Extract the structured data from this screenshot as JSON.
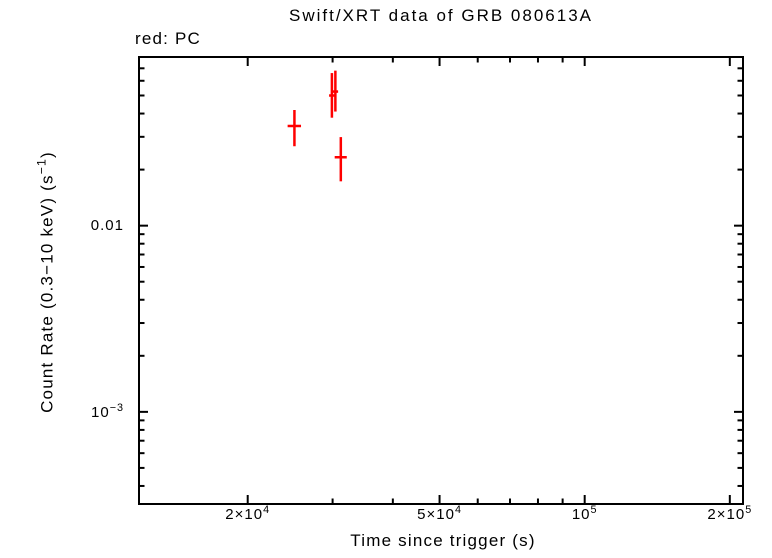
{
  "figure": {
    "title": "Swift/XRT data of GRB 080613A",
    "legend": "red: PC",
    "x_label": "Time since trigger (s)",
    "y_label": "Count Rate (0.3−10 keV) (s^{−1})",
    "colors": {
      "pc_mode": "#ff0000",
      "axis": "#000000",
      "background": "#ffffff"
    }
  },
  "chart_data": {
    "type": "scatter",
    "title": "Swift/XRT data of GRB 080613A",
    "xlabel": "Time since trigger (s)",
    "ylabel": "Count Rate (0.3−10 keV) (s⁻¹)",
    "x_scale": "log",
    "y_scale": "log",
    "xlim": [
      11900,
      213000
    ],
    "ylim": [
      0.00032,
      0.0805
    ],
    "grid": false,
    "legend": [
      {
        "label": "red: PC",
        "mode": "PC",
        "color": "#ff0000",
        "position": "top-left-outside"
      }
    ],
    "x_ticks": {
      "major": [
        {
          "value": 20000,
          "label": "2×10^{4}"
        },
        {
          "value": 50000,
          "label": "5×10^{4}"
        },
        {
          "value": 100000,
          "label": "10^{5}"
        },
        {
          "value": 200000,
          "label": "2×10^{5}"
        }
      ],
      "minor": [
        30000,
        40000,
        60000,
        70000,
        80000,
        90000
      ]
    },
    "y_ticks": {
      "major": [
        {
          "value": 0.01,
          "label": "0.01"
        },
        {
          "value": 0.001,
          "label": "10^{−3}"
        }
      ],
      "minor": [
        0.07,
        0.06,
        0.05,
        0.04,
        0.03,
        0.02,
        0.009,
        0.008,
        0.007,
        0.006,
        0.005,
        0.004,
        0.003,
        0.002,
        0.0009,
        0.0008,
        0.0007,
        0.0006,
        0.0005,
        0.0004
      ]
    },
    "series": [
      {
        "name": "PC",
        "color": "#ff0000",
        "marker": "cross-errorbars",
        "points": [
          {
            "t": 25000,
            "t_lo": 24200,
            "t_hi": 25800,
            "rate": 0.0343,
            "rate_lo": 0.0267,
            "rate_hi": 0.0418
          },
          {
            "t": 29900,
            "t_lo": 29500,
            "t_hi": 30400,
            "rate": 0.05,
            "rate_lo": 0.038,
            "rate_hi": 0.066
          },
          {
            "t": 30400,
            "t_lo": 30000,
            "t_hi": 30800,
            "rate": 0.0525,
            "rate_lo": 0.041,
            "rate_hi": 0.068
          },
          {
            "t": 31200,
            "t_lo": 30300,
            "t_hi": 32100,
            "rate": 0.0233,
            "rate_lo": 0.0173,
            "rate_hi": 0.0299
          }
        ]
      }
    ]
  }
}
